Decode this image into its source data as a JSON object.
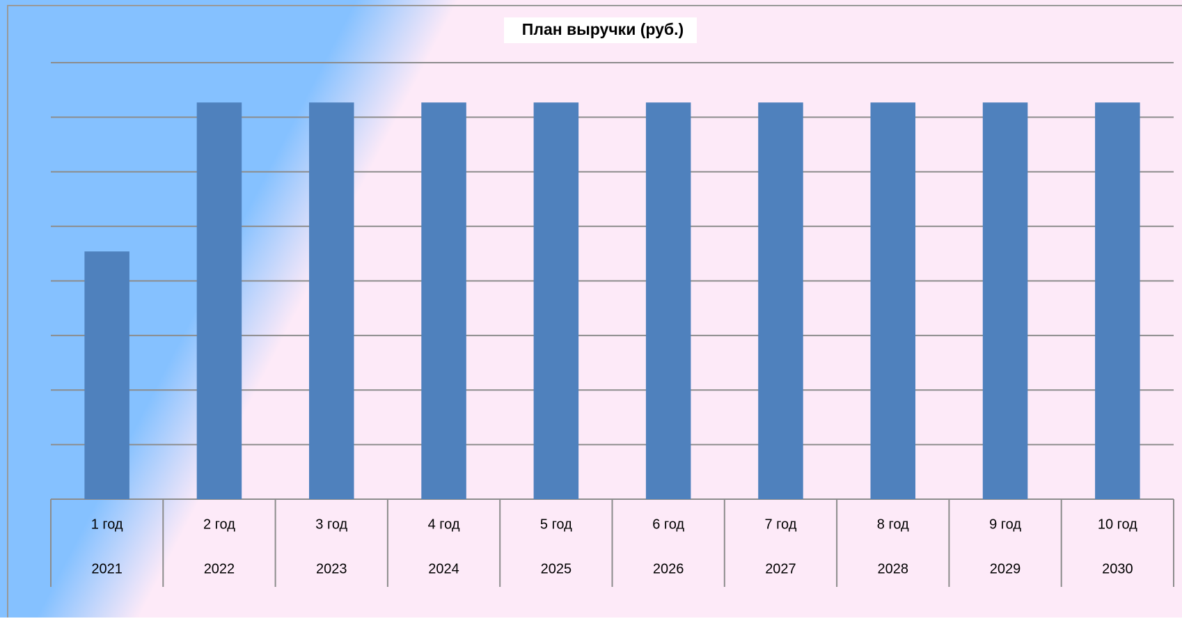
{
  "chart_data": {
    "type": "bar",
    "title": "План выручки (руб.)",
    "categories": [
      "1 год",
      "2 год",
      "3 год",
      "4 год",
      "5 год",
      "6 год",
      "7 год",
      "8 год",
      "9 год",
      "10 год"
    ],
    "sub_categories": [
      "2021",
      "2022",
      "2023",
      "2024",
      "2025",
      "2026",
      "2027",
      "2028",
      "2029",
      "2030"
    ],
    "values": [
      4.54,
      7.27,
      7.27,
      7.27,
      7.27,
      7.27,
      7.27,
      7.27,
      7.27,
      7.27
    ],
    "color": "#4f81bd",
    "ylim": [
      0,
      8
    ],
    "yticks": [
      0,
      1,
      2,
      3,
      4,
      5,
      6,
      7,
      8
    ],
    "grid": true,
    "tick_labels": false
  }
}
